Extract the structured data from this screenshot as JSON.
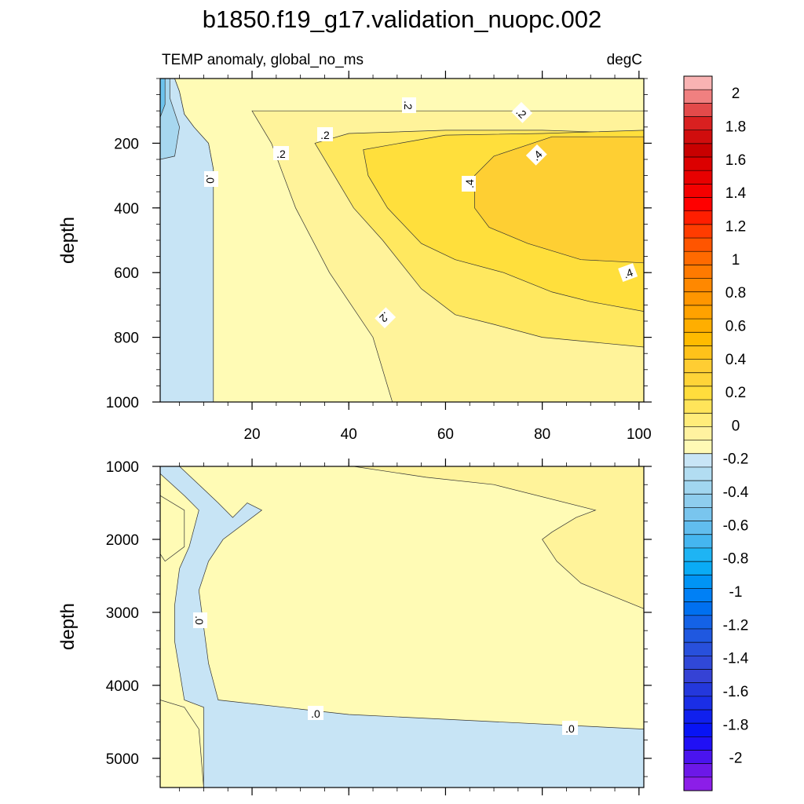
{
  "title": "b1850.f19_g17.validation_nuopc.002",
  "chart_data": {
    "type": "heatmap",
    "panels": [
      {
        "name": "upper",
        "left_title": "TEMP anomaly, global_no_ms",
        "right_title": "degC",
        "ylabel": "depth",
        "xlim": [
          1,
          101
        ],
        "ylim": [
          0,
          1000
        ],
        "y_reversed": true,
        "x_ticks": [
          "20",
          "40",
          "60",
          "80",
          "100"
        ],
        "x_tick_values": [
          20,
          40,
          60,
          80,
          100
        ],
        "y_ticks": [
          "200",
          "400",
          "600",
          "800",
          "1000"
        ],
        "y_tick_values": [
          200,
          400,
          600,
          800,
          1000
        ],
        "contour_labels": [
          ".0",
          ".2",
          ".2",
          ".2",
          ".2",
          ".2",
          ".4",
          ".4",
          ".4"
        ],
        "regions": [
          {
            "level": "-0.1",
            "color": "#c7e4f5",
            "polygon": [
              [
                1,
                0
              ],
              [
                1,
                1000
              ],
              [
                12,
                1000
              ],
              [
                12,
                280
              ],
              [
                11,
                200
              ],
              [
                8,
                150
              ],
              [
                6,
                110
              ],
              [
                5,
                40
              ],
              [
                4,
                0
              ]
            ]
          },
          {
            "level": "-0.3",
            "color": "#a7d7ef",
            "polygon": [
              [
                1,
                0
              ],
              [
                1,
                250
              ],
              [
                4,
                240
              ],
              [
                5,
                150
              ],
              [
                3,
                60
              ],
              [
                3,
                0
              ]
            ]
          },
          {
            "level": "-0.5",
            "color": "#6cc3ee",
            "polygon": [
              [
                1,
                0
              ],
              [
                1,
                120
              ],
              [
                2,
                80
              ],
              [
                2,
                0
              ]
            ]
          },
          {
            "level": "0.1",
            "color": "#fffbb5",
            "polygon": [
              [
                12,
                1000
              ],
              [
                12,
                280
              ],
              [
                11,
                200
              ],
              [
                8,
                150
              ],
              [
                6,
                110
              ],
              [
                5,
                40
              ],
              [
                4,
                0
              ],
              [
                101,
                0
              ],
              [
                101,
                1000
              ]
            ]
          },
          {
            "level": "0.2",
            "color": "#fff39a",
            "polygon": [
              [
                20,
                100
              ],
              [
                24,
                200
              ],
              [
                29,
                400
              ],
              [
                36,
                600
              ],
              [
                45,
                800
              ],
              [
                49,
                1000
              ],
              [
                101,
                1000
              ],
              [
                101,
                100
              ]
            ]
          },
          {
            "level": "0.3",
            "color": "#ffe85f",
            "polygon": [
              [
                33,
                200
              ],
              [
                37,
                300
              ],
              [
                41,
                400
              ],
              [
                47,
                500
              ],
              [
                55,
                650
              ],
              [
                62,
                730
              ],
              [
                70,
                760
              ],
              [
                80,
                800
              ],
              [
                101,
                830
              ],
              [
                101,
                170
              ],
              [
                80,
                160
              ],
              [
                60,
                160
              ],
              [
                40,
                170
              ]
            ]
          },
          {
            "level": "0.4",
            "color": "#ffdf3c",
            "polygon": [
              [
                43,
                220
              ],
              [
                44,
                300
              ],
              [
                48,
                400
              ],
              [
                55,
                510
              ],
              [
                62,
                560
              ],
              [
                72,
                600
              ],
              [
                82,
                660
              ],
              [
                90,
                690
              ],
              [
                101,
                720
              ],
              [
                101,
                160
              ],
              [
                80,
                170
              ],
              [
                60,
                175
              ]
            ]
          },
          {
            "level": "0.5",
            "color": "#fecf33",
            "polygon": [
              [
                66,
                300
              ],
              [
                66,
                400
              ],
              [
                69,
                460
              ],
              [
                77,
                510
              ],
              [
                88,
                560
              ],
              [
                101,
                570
              ],
              [
                101,
                180
              ],
              [
                82,
                180
              ],
              [
                70,
                240
              ]
            ]
          }
        ]
      },
      {
        "name": "lower",
        "ylabel": "depth",
        "xlim": [
          1,
          101
        ],
        "ylim": [
          1000,
          5400
        ],
        "y_reversed": true,
        "y_ticks": [
          "1000",
          "2000",
          "3000",
          "4000",
          "5000"
        ],
        "y_tick_values": [
          1000,
          2000,
          3000,
          4000,
          5000
        ],
        "contour_labels": [
          ".0",
          ".0",
          ".0"
        ],
        "regions": [
          {
            "level": "0.1",
            "color": "#fffbb5",
            "polygon": [
              [
                1,
                1000
              ],
              [
                101,
                1000
              ],
              [
                101,
                5400
              ],
              [
                1,
                5400
              ]
            ]
          },
          {
            "level": "-0.1",
            "color": "#c7e4f5",
            "polygon": [
              [
                1,
                1000
              ],
              [
                1,
                1100
              ],
              [
                6,
                1400
              ],
              [
                9,
                1600
              ],
              [
                7,
                2100
              ],
              [
                5,
                2400
              ],
              [
                4,
                2900
              ],
              [
                4,
                3400
              ],
              [
                6,
                4200
              ],
              [
                10,
                4300
              ],
              [
                10,
                5400
              ],
              [
                101,
                5400
              ],
              [
                101,
                4600
              ],
              [
                40,
                4400
              ],
              [
                13,
                4200
              ],
              [
                11,
                3700
              ],
              [
                9,
                2700
              ],
              [
                11,
                2300
              ],
              [
                14,
                2000
              ],
              [
                22,
                1600
              ],
              [
                19,
                1500
              ],
              [
                16,
                1700
              ],
              [
                13,
                1500
              ],
              [
                9,
                1250
              ],
              [
                5,
                1000
              ]
            ]
          },
          {
            "level": "0.3",
            "color": "#fff39a",
            "polygon": [
              [
                41,
                1000
              ],
              [
                56,
                1150
              ],
              [
                70,
                1250
              ],
              [
                91,
                1600
              ],
              [
                87,
                1700
              ],
              [
                82,
                1900
              ],
              [
                80,
                2000
              ],
              [
                83,
                2300
              ],
              [
                88,
                2600
              ],
              [
                101,
                2950
              ],
              [
                101,
                1000
              ]
            ]
          },
          {
            "level": "0.1",
            "color": "#fffbb5",
            "polygon": [
              [
                1,
                1400
              ],
              [
                6,
                1600
              ],
              [
                6,
                2100
              ],
              [
                2,
                2300
              ],
              [
                1,
                2200
              ]
            ]
          },
          {
            "level": "0.1",
            "color": "#fffbb5",
            "polygon": [
              [
                1,
                4200
              ],
              [
                6,
                4300
              ],
              [
                9,
                4600
              ],
              [
                10,
                5400
              ],
              [
                1,
                5400
              ]
            ]
          }
        ]
      }
    ],
    "colorbar": {
      "labels": [
        "2",
        "1.8",
        "1.6",
        "1.4",
        "1.2",
        "1",
        "0.8",
        "0.6",
        "0.4",
        "0.2",
        "0",
        "-0.2",
        "-0.4",
        "-0.6",
        "-0.8",
        "-1",
        "-1.2",
        "-1.4",
        "-1.6",
        "-1.8",
        "-2"
      ],
      "label_values": [
        2,
        1.8,
        1.6,
        1.4,
        1.2,
        1,
        0.8,
        0.6,
        0.4,
        0.2,
        0,
        -0.2,
        -0.4,
        -0.6,
        -0.8,
        -1,
        -1.2,
        -1.4,
        -1.6,
        -1.8,
        -2
      ],
      "colors": [
        "#f9b3b3",
        "#f08080",
        "#e34a4a",
        "#d92020",
        "#d00d0d",
        "#c80000",
        "#dc0000",
        "#e80000",
        "#f40000",
        "#ff0000",
        "#ff1e00",
        "#ff3c00",
        "#ff5500",
        "#ff6a00",
        "#ff7a00",
        "#ff8800",
        "#ff9600",
        "#ffa200",
        "#ffae00",
        "#ffbb00",
        "#ffc21a",
        "#ffcd33",
        "#ffd438",
        "#ffdd3c",
        "#ffe45a",
        "#ffec7a",
        "#fff2a0",
        "#fffab5",
        "#c8e5f6",
        "#b2ddf2",
        "#a1d6f0",
        "#8ecdee",
        "#79c5ee",
        "#61bdee",
        "#45b6f0",
        "#1eb4f4",
        "#0aabf5",
        "#0094f5",
        "#0080f5",
        "#0070f0",
        "#1462e6",
        "#1f58e0",
        "#2850dc",
        "#3048d8",
        "#3542d5",
        "#2438dc",
        "#1a2ee6",
        "#1020ee",
        "#0814f5",
        "#2010f5",
        "#4a14ee",
        "#6c18e8",
        "#8c1ee8"
      ]
    }
  }
}
